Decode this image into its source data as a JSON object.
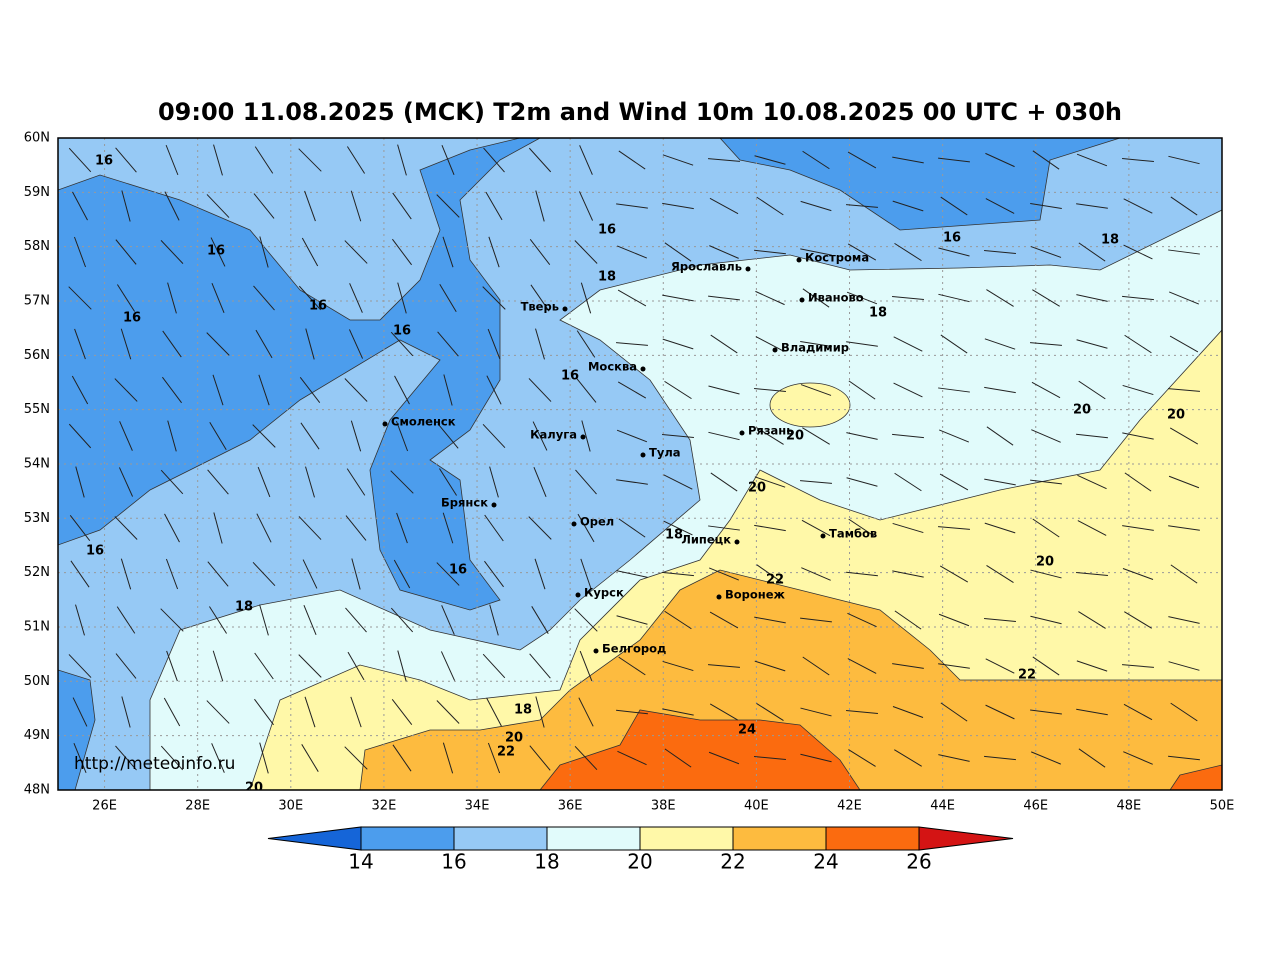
{
  "title": "09:00 11.08.2025 (MCK) T2m and Wind 10m 10.08.2025 00 UTC + 030h",
  "lat_labels": [
    "60N",
    "59N",
    "58N",
    "57N",
    "56N",
    "55N",
    "54N",
    "53N",
    "52N",
    "51N",
    "50N",
    "49N",
    "48N"
  ],
  "lon_labels": [
    "26E",
    "28E",
    "30E",
    "32E",
    "34E",
    "36E",
    "38E",
    "40E",
    "42E",
    "44E",
    "46E",
    "48E",
    "50E"
  ],
  "cities": [
    "Кострома",
    "Ярославль",
    "Иваново",
    "Тверь",
    "Владимир",
    "Москва",
    "Смоленск",
    "Рязань",
    "Калуга",
    "Тула",
    "Брянск",
    "Орел",
    "Липецк",
    "Тамбов",
    "Курск",
    "Воронеж",
    "Белгород"
  ],
  "contour_labels": [
    16,
    16,
    16,
    16,
    16,
    16,
    16,
    16,
    16,
    16,
    18,
    18,
    18,
    18,
    18,
    18,
    20,
    20,
    20,
    20,
    20,
    20,
    20,
    22,
    22,
    22,
    24
  ],
  "colorbar": {
    "ticks": [
      14,
      16,
      18,
      20,
      22,
      24,
      26
    ],
    "colors": [
      "#1565d8",
      "#4c9ded",
      "#96c9f5",
      "#e1fbfb",
      "#fff8a8",
      "#fdbb3f",
      "#fb6b0f",
      "#d41414"
    ]
  },
  "watermark": "http://meteoinfo.ru"
}
